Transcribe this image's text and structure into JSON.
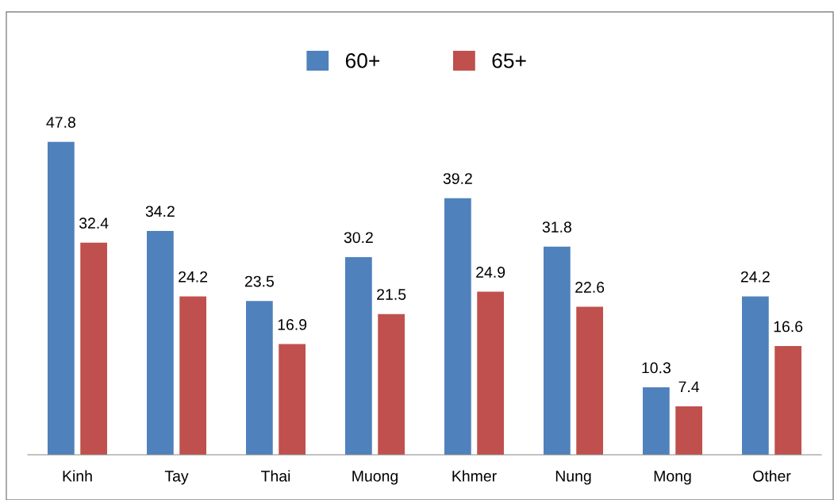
{
  "chart_data": {
    "type": "bar",
    "categories": [
      "Kinh",
      "Tay",
      "Thai",
      "Muong",
      "Khmer",
      "Nung",
      "Mong",
      "Other"
    ],
    "series": [
      {
        "name": "60+",
        "color": "#4f81bd",
        "values": [
          47.8,
          34.2,
          23.5,
          30.2,
          39.2,
          31.8,
          10.3,
          24.2
        ]
      },
      {
        "name": "65+",
        "color": "#c0504d",
        "values": [
          32.4,
          24.2,
          16.9,
          21.5,
          24.9,
          22.6,
          7.4,
          16.6
        ]
      }
    ],
    "tick_labels": "x",
    "data_labels": true,
    "legend": "top",
    "grid": false
  }
}
